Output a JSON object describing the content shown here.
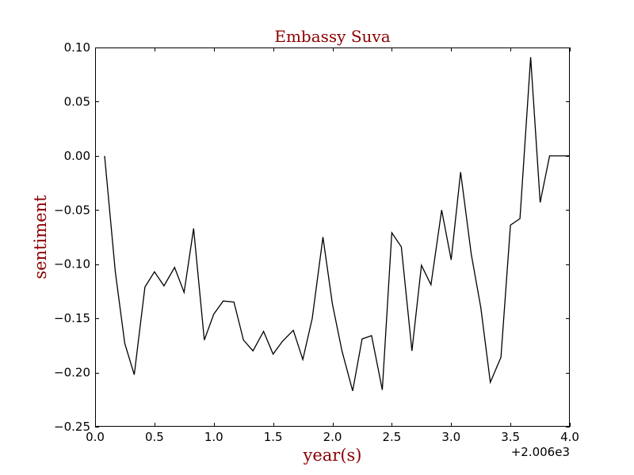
{
  "chart_data": {
    "type": "line",
    "title": "Embassy Suva",
    "xlabel": "year(s)",
    "ylabel": "sentiment",
    "x_offset_label": "+2.006e3",
    "xlim": [
      0.0,
      4.0
    ],
    "ylim": [
      -0.25,
      0.1
    ],
    "x_ticks": [
      0.0,
      0.5,
      1.0,
      1.5,
      2.0,
      2.5,
      3.0,
      3.5,
      4.0
    ],
    "x_tick_labels": [
      "0.0",
      "0.5",
      "1.0",
      "1.5",
      "2.0",
      "2.5",
      "3.0",
      "3.5",
      "4.0"
    ],
    "y_ticks": [
      0.1,
      0.05,
      0.0,
      -0.05,
      -0.1,
      -0.15,
      -0.2,
      -0.25
    ],
    "y_tick_labels": [
      "0.10",
      "0.05",
      "0.00",
      "−0.05",
      "−0.10",
      "−0.15",
      "−0.20",
      "−0.25"
    ],
    "grid": false,
    "colors": {
      "line": "#000000",
      "text_accent": "#8b0000"
    },
    "series": [
      {
        "x": [
          0.08,
          0.17,
          0.25,
          0.33,
          0.42,
          0.5,
          0.58,
          0.67,
          0.75,
          0.83,
          0.92,
          1.0,
          1.08,
          1.17,
          1.25,
          1.33,
          1.42,
          1.5,
          1.58,
          1.67,
          1.75,
          1.83,
          1.92,
          2.0,
          2.08,
          2.17,
          2.25,
          2.33,
          2.42,
          2.5,
          2.58,
          2.67,
          2.75,
          2.83,
          2.92,
          3.0,
          3.08,
          3.17,
          3.25,
          3.33,
          3.42,
          3.5,
          3.58,
          3.67,
          3.75,
          3.83,
          3.92,
          4.0
        ],
        "values": [
          0.0,
          -0.107,
          -0.173,
          -0.202,
          -0.121,
          -0.107,
          -0.12,
          -0.103,
          -0.126,
          -0.067,
          -0.17,
          -0.146,
          -0.134,
          -0.135,
          -0.17,
          -0.18,
          -0.162,
          -0.183,
          -0.171,
          -0.161,
          -0.188,
          -0.15,
          -0.075,
          -0.137,
          -0.18,
          -0.217,
          -0.169,
          -0.166,
          -0.216,
          -0.071,
          -0.084,
          -0.18,
          -0.101,
          -0.119,
          -0.05,
          -0.096,
          -0.015,
          -0.091,
          -0.14,
          -0.209,
          -0.186,
          -0.064,
          -0.058,
          0.091,
          -0.043,
          0.0,
          0.0,
          0.0
        ]
      }
    ]
  }
}
